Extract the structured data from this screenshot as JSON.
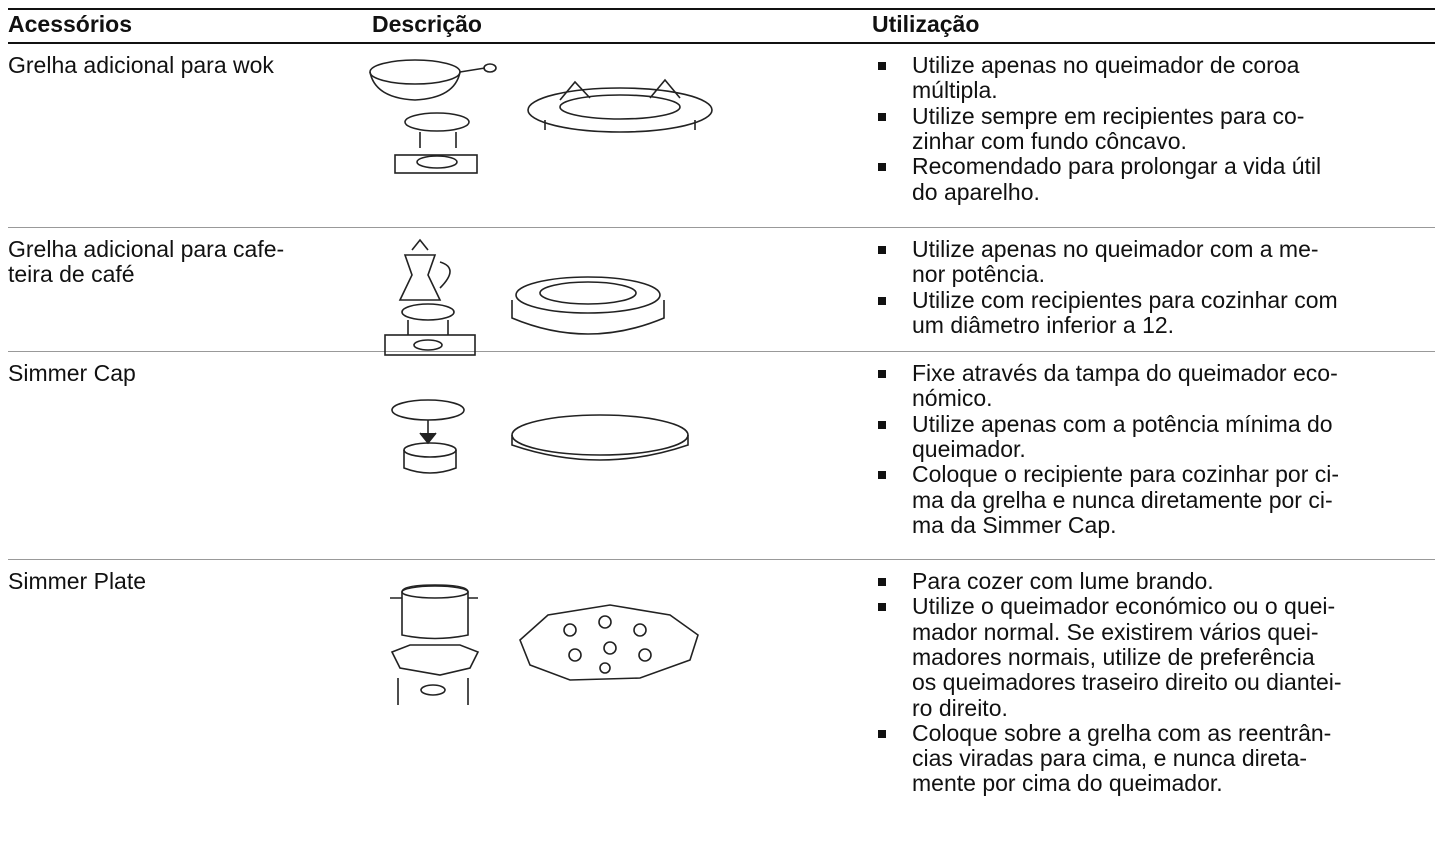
{
  "header": [
    "Acessórios",
    "Descrição",
    "Utilização"
  ],
  "rows": [
    {
      "name": [
        "Grelha adicional para wok"
      ],
      "usage": [
        [
          "Utilize apenas no queimador de coroa",
          "múltipla."
        ],
        [
          "Utilize sempre em recipientes para co-",
          "zinhar com fundo côncavo."
        ],
        [
          "Recomendado para prolongar a vida útil",
          "do aparelho."
        ]
      ]
    },
    {
      "name": [
        "Grelha adicional para cafe-",
        "teira de café"
      ],
      "usage": [
        [
          "Utilize apenas no queimador com a me-",
          "nor potência."
        ],
        [
          "Utilize com recipientes para cozinhar com",
          "um diâmetro inferior a 12."
        ]
      ]
    },
    {
      "name": [
        "Simmer Cap"
      ],
      "usage": [
        [
          "Fixe através da tampa do queimador eco-",
          "nómico."
        ],
        [
          "Utilize apenas com a potência mínima do",
          "queimador."
        ],
        [
          "Coloque o recipiente para cozinhar por ci-",
          "ma da grelha e nunca diretamente por ci-",
          "ma da Simmer Cap."
        ]
      ]
    },
    {
      "name": [
        "Simmer Plate"
      ],
      "usage": [
        [
          "Para cozer com lume brando."
        ],
        [
          "Utilize o queimador económico ou o quei-",
          "mador normal. Se existirem vários quei-",
          "madores normais, utilize de preferência",
          "os queimadores traseiro direito ou diantei-",
          "ro direito."
        ],
        [
          "Coloque sobre a grelha com as reentrân-",
          "cias viradas para cima, e nunca direta-",
          "mente por cima do queimador."
        ]
      ]
    }
  ]
}
